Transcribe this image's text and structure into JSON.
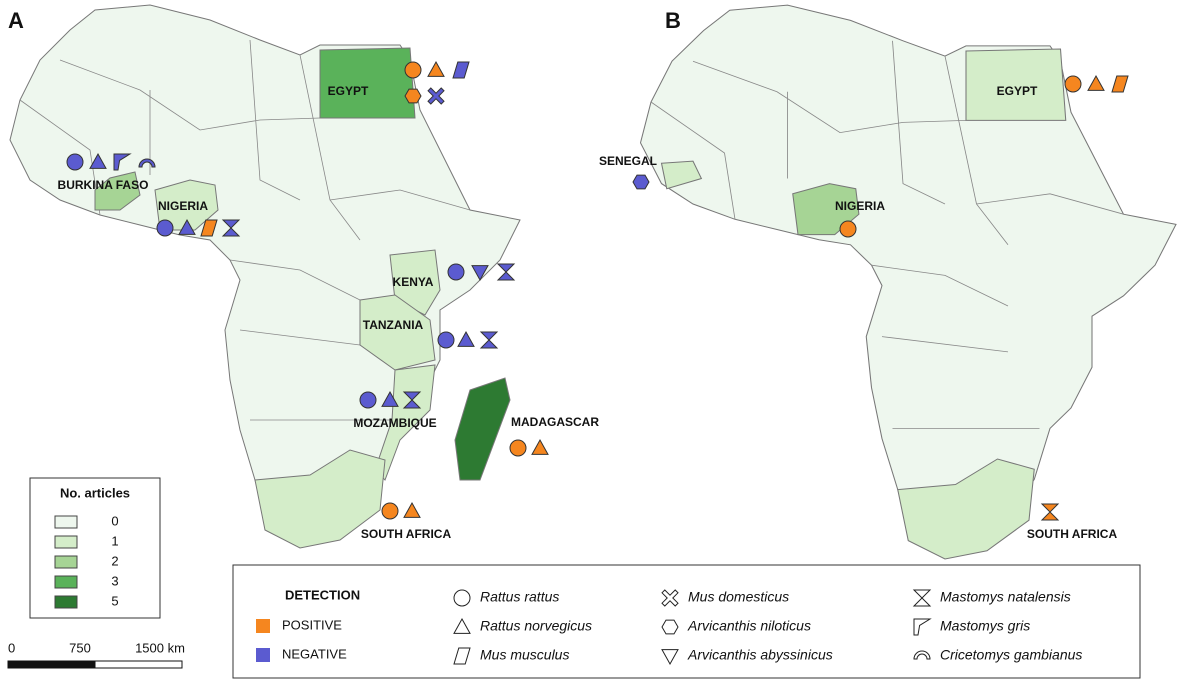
{
  "map_fill": "#eef7ee",
  "panels": [
    {
      "label": "A",
      "countries": [
        {
          "name": "EGYPT",
          "fill": "#5ab25a",
          "markers": [
            {
              "shape": "circle",
              "color": "#f5861f"
            },
            {
              "shape": "triangle",
              "color": "#f5861f"
            },
            {
              "shape": "parallelogram",
              "color": "#5b5bd0"
            },
            {
              "shape": "hexagon",
              "color": "#f5861f"
            },
            {
              "shape": "cross",
              "color": "#5b5bd0"
            }
          ]
        },
        {
          "name": "BURKINA FASO",
          "fill": "#a6d495",
          "markers": [
            {
              "shape": "circle",
              "color": "#5b5bd0"
            },
            {
              "shape": "triangle",
              "color": "#5b5bd0"
            },
            {
              "shape": "flag",
              "color": "#5b5bd0"
            },
            {
              "shape": "arc",
              "color": "#5b5bd0"
            }
          ]
        },
        {
          "name": "NIGERIA",
          "fill": "#d4edc9",
          "markers": [
            {
              "shape": "circle",
              "color": "#5b5bd0"
            },
            {
              "shape": "triangle",
              "color": "#5b5bd0"
            },
            {
              "shape": "parallelogram",
              "color": "#f5861f"
            },
            {
              "shape": "hourglass",
              "color": "#5b5bd0"
            }
          ]
        },
        {
          "name": "KENYA",
          "fill": "#d4edc9",
          "markers": [
            {
              "shape": "circle",
              "color": "#5b5bd0"
            },
            {
              "shape": "triangle-down",
              "color": "#5b5bd0"
            },
            {
              "shape": "hourglass",
              "color": "#5b5bd0"
            }
          ]
        },
        {
          "name": "TANZANIA",
          "fill": "#d4edc9",
          "markers": [
            {
              "shape": "circle",
              "color": "#5b5bd0"
            },
            {
              "shape": "triangle",
              "color": "#5b5bd0"
            },
            {
              "shape": "hourglass",
              "color": "#5b5bd0"
            }
          ]
        },
        {
          "name": "MOZAMBIQUE",
          "fill": "#d4edc9",
          "markers": [
            {
              "shape": "circle",
              "color": "#5b5bd0"
            },
            {
              "shape": "triangle",
              "color": "#5b5bd0"
            },
            {
              "shape": "hourglass",
              "color": "#5b5bd0"
            }
          ]
        },
        {
          "name": "MADAGASCAR",
          "fill": "#2d7a32",
          "markers": [
            {
              "shape": "circle",
              "color": "#f5861f"
            },
            {
              "shape": "triangle",
              "color": "#f5861f"
            }
          ]
        },
        {
          "name": "SOUTH AFRICA",
          "fill": "#d4edc9",
          "markers": [
            {
              "shape": "circle",
              "color": "#f5861f"
            },
            {
              "shape": "triangle",
              "color": "#f5861f"
            }
          ]
        }
      ]
    },
    {
      "label": "B",
      "countries": [
        {
          "name": "EGYPT",
          "fill": "#d4edc9",
          "markers": [
            {
              "shape": "circle",
              "color": "#f5861f"
            },
            {
              "shape": "triangle",
              "color": "#f5861f"
            },
            {
              "shape": "parallelogram",
              "color": "#f5861f"
            }
          ]
        },
        {
          "name": "SENEGAL",
          "fill": "#d4edc9",
          "markers": [
            {
              "shape": "hexagon",
              "color": "#5b5bd0"
            }
          ]
        },
        {
          "name": "NIGERIA",
          "fill": "#a6d495",
          "markers": [
            {
              "shape": "circle",
              "color": "#f5861f"
            }
          ]
        },
        {
          "name": "SOUTH AFRICA",
          "fill": "#d4edc9",
          "markers": [
            {
              "shape": "hourglass",
              "color": "#f5861f"
            }
          ]
        }
      ]
    }
  ],
  "legend": {
    "title": "No. articles",
    "classes": [
      {
        "label": "0",
        "color": "#eef7ee"
      },
      {
        "label": "1",
        "color": "#d4edc9"
      },
      {
        "label": "2",
        "color": "#a6d495"
      },
      {
        "label": "3",
        "color": "#5ab25a"
      },
      {
        "label": "5",
        "color": "#2d7a32"
      }
    ]
  },
  "detection": {
    "title": "DETECTION",
    "items": [
      {
        "label": "POSITIVE",
        "color": "#f5861f"
      },
      {
        "label": "NEGATIVE",
        "color": "#5b5bd0"
      }
    ]
  },
  "species": [
    {
      "name": "Rattus rattus",
      "shape": "circle"
    },
    {
      "name": "Rattus norvegicus",
      "shape": "triangle"
    },
    {
      "name": "Mus musculus",
      "shape": "parallelogram"
    },
    {
      "name": "Mus domesticus",
      "shape": "cross"
    },
    {
      "name": "Arvicanthis niloticus",
      "shape": "hexagon"
    },
    {
      "name": "Arvicanthis abyssinicus",
      "shape": "triangle-down"
    },
    {
      "name": "Mastomys natalensis",
      "shape": "hourglass"
    },
    {
      "name": "Mastomys gris",
      "shape": "flag"
    },
    {
      "name": "Cricetomys gambianus",
      "shape": "arc"
    }
  ],
  "scale_bar": {
    "labels": [
      "0",
      "750",
      "1500 km"
    ]
  }
}
